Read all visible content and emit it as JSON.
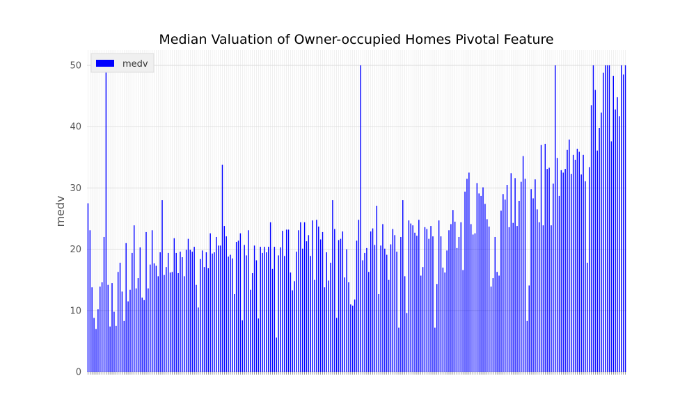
{
  "chart_data": {
    "type": "bar",
    "title": "Median Valuation of Owner-occupied Homes Pivotal Feature",
    "xlabel": "",
    "ylabel": "medv",
    "ylim": [
      0,
      52.5
    ],
    "yticks": [
      0,
      10,
      20,
      30,
      40,
      50
    ],
    "grid": true,
    "legend_position": "top-left",
    "bar_color": "#0000ff",
    "series": [
      {
        "name": "medv",
        "values": [
          27.5,
          23.1,
          13.8,
          8.8,
          7.0,
          10.2,
          13.9,
          14.6,
          22.0,
          50.0,
          14.2,
          7.4,
          14.5,
          9.8,
          7.5,
          16.3,
          17.8,
          13.1,
          8.3,
          21.0,
          11.5,
          13.4,
          19.4,
          23.9,
          13.6,
          15.3,
          20.3,
          12.1,
          11.7,
          22.8,
          13.6,
          17.5,
          23.1,
          17.7,
          17.3,
          15.6,
          19.5,
          28.0,
          15.8,
          17.1,
          19.4,
          16.2,
          16.3,
          21.8,
          19.4,
          16.1,
          19.6,
          18.7,
          15.6,
          19.9,
          21.7,
          19.9,
          19.6,
          20.4,
          14.2,
          10.5,
          18.4,
          19.8,
          17.1,
          19.5,
          16.9,
          22.6,
          19.3,
          19.5,
          22.0,
          20.6,
          20.6,
          33.8,
          23.8,
          22.1,
          18.8,
          19.1,
          18.5,
          12.7,
          21.2,
          21.4,
          22.6,
          8.4,
          20.7,
          19.0,
          23.1,
          13.4,
          16.1,
          20.6,
          18.2,
          8.7,
          20.4,
          19.4,
          20.4,
          19.5,
          20.4,
          24.4,
          16.8,
          20.4,
          5.6,
          19.0,
          20.3,
          23.0,
          18.9,
          23.2,
          23.2,
          16.2,
          13.3,
          14.8,
          19.6,
          23.1,
          24.4,
          20.1,
          24.4,
          21.3,
          22.3,
          18.9,
          24.7,
          15.0,
          24.8,
          23.7,
          21.6,
          22.8,
          13.8,
          19.5,
          14.9,
          17.8,
          28.0,
          23.3,
          8.8,
          21.5,
          21.7,
          22.9,
          15.4,
          20.0,
          14.6,
          11.0,
          10.8,
          11.8,
          21.4,
          24.8,
          50.0,
          18.2,
          19.4,
          20.2,
          16.3,
          22.9,
          23.4,
          20.7,
          27.1,
          12.7,
          20.6,
          24.1,
          20.1,
          19.1,
          15.0,
          20.8,
          23.3,
          22.3,
          19.6,
          7.2,
          22.0,
          28.0,
          15.6,
          9.6,
          24.7,
          24.2,
          23.9,
          22.7,
          22.2,
          24.8,
          15.7,
          17.1,
          23.6,
          23.3,
          21.7,
          23.8,
          22.1,
          7.2,
          14.3,
          24.7,
          22.1,
          17.0,
          16.2,
          19.8,
          23.1,
          24.1,
          26.4,
          24.5,
          20.2,
          22.0,
          24.4,
          16.6,
          29.4,
          31.5,
          32.5,
          24.1,
          22.4,
          22.6,
          30.8,
          29.1,
          28.7,
          30.1,
          27.4,
          24.9,
          23.7,
          13.9,
          15.3,
          22.0,
          16.3,
          15.7,
          26.3,
          29.0,
          28.1,
          30.5,
          23.6,
          32.4,
          24.3,
          31.6,
          23.8,
          27.9,
          31.0,
          35.2,
          31.5,
          8.3,
          14.1,
          29.8,
          28.3,
          31.4,
          26.5,
          24.4,
          37.0,
          23.9,
          37.2,
          33.1,
          33.3,
          23.9,
          30.7,
          50.0,
          34.9,
          28.7,
          32.9,
          32.5,
          33.1,
          36.2,
          37.9,
          32.3,
          35.4,
          34.6,
          36.4,
          35.9,
          32.2,
          35.4,
          31.1,
          17.8,
          33.4,
          43.5,
          50.0,
          46.0,
          36.1,
          39.8,
          42.3,
          48.8,
          50.0,
          50.0,
          50.0,
          37.6,
          48.3,
          42.8,
          44.8,
          41.7,
          50.0,
          48.5,
          50.0
        ]
      }
    ]
  }
}
